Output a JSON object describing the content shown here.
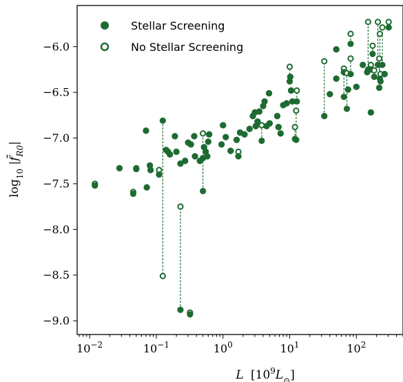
{
  "chart_data": {
    "type": "scatter",
    "title": "",
    "xlabel": "L [10^9 L_⊙]",
    "ylabel": "log₁₀ |f̄_R0|",
    "xscale": "log",
    "xlim": [
      0.0065,
      500
    ],
    "ylim": [
      -9.15,
      -5.55
    ],
    "x_ticks": [
      0.01,
      0.1,
      1,
      10,
      100
    ],
    "x_tick_labels": [
      "10",
      "10",
      "10",
      "10",
      "10"
    ],
    "x_tick_exponents": [
      "−2",
      "−1",
      "0",
      "1",
      "2"
    ],
    "y_ticks": [
      -6.0,
      -6.5,
      -7.0,
      -7.5,
      -8.0,
      -8.5,
      -9.0
    ],
    "y_tick_labels": [
      "−6.0",
      "−6.5",
      "−7.0",
      "−7.5",
      "−8.0",
      "−8.5",
      "−9.0"
    ],
    "grid": false,
    "legend_position": "top-left",
    "color": "#1e6b32",
    "series": [
      {
        "name": "Stellar Screening",
        "marker": "filled"
      },
      {
        "name": "No Stellar Screening",
        "marker": "open"
      }
    ],
    "points": [
      [
        0.012,
        -7.52,
        -7.5
      ],
      [
        0.028,
        -7.33,
        -7.33
      ],
      [
        0.045,
        -7.61,
        -7.59
      ],
      [
        0.05,
        -7.34,
        -7.33
      ],
      [
        0.07,
        -6.92,
        -6.92
      ],
      [
        0.072,
        -7.54,
        -7.54
      ],
      [
        0.08,
        -7.3,
        -7.3
      ],
      [
        0.082,
        -7.35,
        -7.35
      ],
      [
        0.11,
        -7.4,
        -7.35
      ],
      [
        0.125,
        -6.81,
        -8.51
      ],
      [
        0.14,
        -7.13,
        -7.13
      ],
      [
        0.15,
        -7.15,
        -7.15
      ],
      [
        0.16,
        -7.18,
        -7.18
      ],
      [
        0.19,
        -6.98,
        -6.98
      ],
      [
        0.2,
        -7.15,
        -7.15
      ],
      [
        0.23,
        -8.88,
        -7.75
      ],
      [
        0.23,
        -7.28,
        -7.28
      ],
      [
        0.27,
        -7.25,
        -7.25
      ],
      [
        0.3,
        -7.05,
        -7.05
      ],
      [
        0.32,
        -8.93,
        -8.91
      ],
      [
        0.33,
        -7.07,
        -7.07
      ],
      [
        0.37,
        -6.98,
        -6.98
      ],
      [
        0.38,
        -7.2,
        -7.2
      ],
      [
        0.45,
        -7.25,
        -7.25
      ],
      [
        0.5,
        -7.58,
        -6.95
      ],
      [
        0.5,
        -7.22,
        -7.22
      ],
      [
        0.52,
        -7.1,
        -7.1
      ],
      [
        0.55,
        -7.15,
        -7.15
      ],
      [
        0.58,
        -7.2,
        -7.2
      ],
      [
        0.6,
        -7.04,
        -7.04
      ],
      [
        0.62,
        -6.96,
        -6.96
      ],
      [
        0.95,
        -7.07,
        -7.07
      ],
      [
        1.0,
        -6.86,
        -6.86
      ],
      [
        1.1,
        -6.99,
        -6.99
      ],
      [
        1.3,
        -7.14,
        -7.14
      ],
      [
        1.6,
        -7.02,
        -7.02
      ],
      [
        1.7,
        -7.2,
        -7.15
      ],
      [
        1.8,
        -6.94,
        -6.94
      ],
      [
        2.1,
        -6.96,
        -6.96
      ],
      [
        2.5,
        -6.9,
        -6.9
      ],
      [
        2.8,
        -6.76,
        -6.76
      ],
      [
        3.0,
        -6.72,
        -6.72
      ],
      [
        3.1,
        -6.87,
        -6.87
      ],
      [
        3.3,
        -6.82,
        -6.82
      ],
      [
        3.5,
        -6.71,
        -6.71
      ],
      [
        3.8,
        -7.03,
        -6.86
      ],
      [
        4.0,
        -6.65,
        -6.65
      ],
      [
        4.2,
        -6.6,
        -6.6
      ],
      [
        4.5,
        -6.87,
        -6.87
      ],
      [
        4.9,
        -6.51,
        -6.51
      ],
      [
        5.0,
        -6.84,
        -6.84
      ],
      [
        6.5,
        -6.76,
        -6.76
      ],
      [
        6.8,
        -6.88,
        -6.88
      ],
      [
        7.3,
        -6.95,
        -6.95
      ],
      [
        8.0,
        -6.64,
        -6.64
      ],
      [
        9.0,
        -6.62,
        -6.62
      ],
      [
        10.0,
        -6.38,
        -6.22
      ],
      [
        10.2,
        -6.33,
        -6.33
      ],
      [
        10.5,
        -6.48,
        -6.48
      ],
      [
        11.0,
        -6.6,
        -6.6
      ],
      [
        12.0,
        -7.01,
        -6.88
      ],
      [
        12.5,
        -7.02,
        -6.7
      ],
      [
        12.8,
        -6.6,
        -6.48
      ],
      [
        33.0,
        -6.76,
        -6.16
      ],
      [
        40.0,
        -6.52,
        -6.52
      ],
      [
        50.0,
        -6.35,
        -6.35
      ],
      [
        50.0,
        -6.03,
        -6.03
      ],
      [
        65.0,
        -6.55,
        -6.24
      ],
      [
        65.0,
        -6.28,
        -6.28
      ],
      [
        72.0,
        -6.68,
        -6.29
      ],
      [
        75.0,
        -6.47,
        -6.47
      ],
      [
        82.0,
        -5.97,
        -5.86
      ],
      [
        82.0,
        -6.3,
        -6.13
      ],
      [
        100.0,
        -6.44,
        -6.44
      ],
      [
        125.0,
        -6.2,
        -6.2
      ],
      [
        145.0,
        -6.28,
        -6.28
      ],
      [
        150.0,
        -6.25,
        -5.73
      ],
      [
        165.0,
        -6.25,
        -6.2
      ],
      [
        165.0,
        -6.72,
        -6.72
      ],
      [
        175.0,
        -6.08,
        -5.99
      ],
      [
        185.0,
        -6.33,
        -6.26
      ],
      [
        210.0,
        -6.2,
        -5.73
      ],
      [
        220.0,
        -6.45,
        -6.13
      ],
      [
        225.0,
        -6.35,
        -5.86
      ],
      [
        230.0,
        -6.38,
        -6.3
      ],
      [
        245.0,
        -6.2,
        -5.79
      ],
      [
        265.0,
        -6.3,
        -6.3
      ],
      [
        305.0,
        -5.79,
        -5.73
      ]
    ]
  },
  "colors": {
    "marker": "#1e6b32"
  }
}
